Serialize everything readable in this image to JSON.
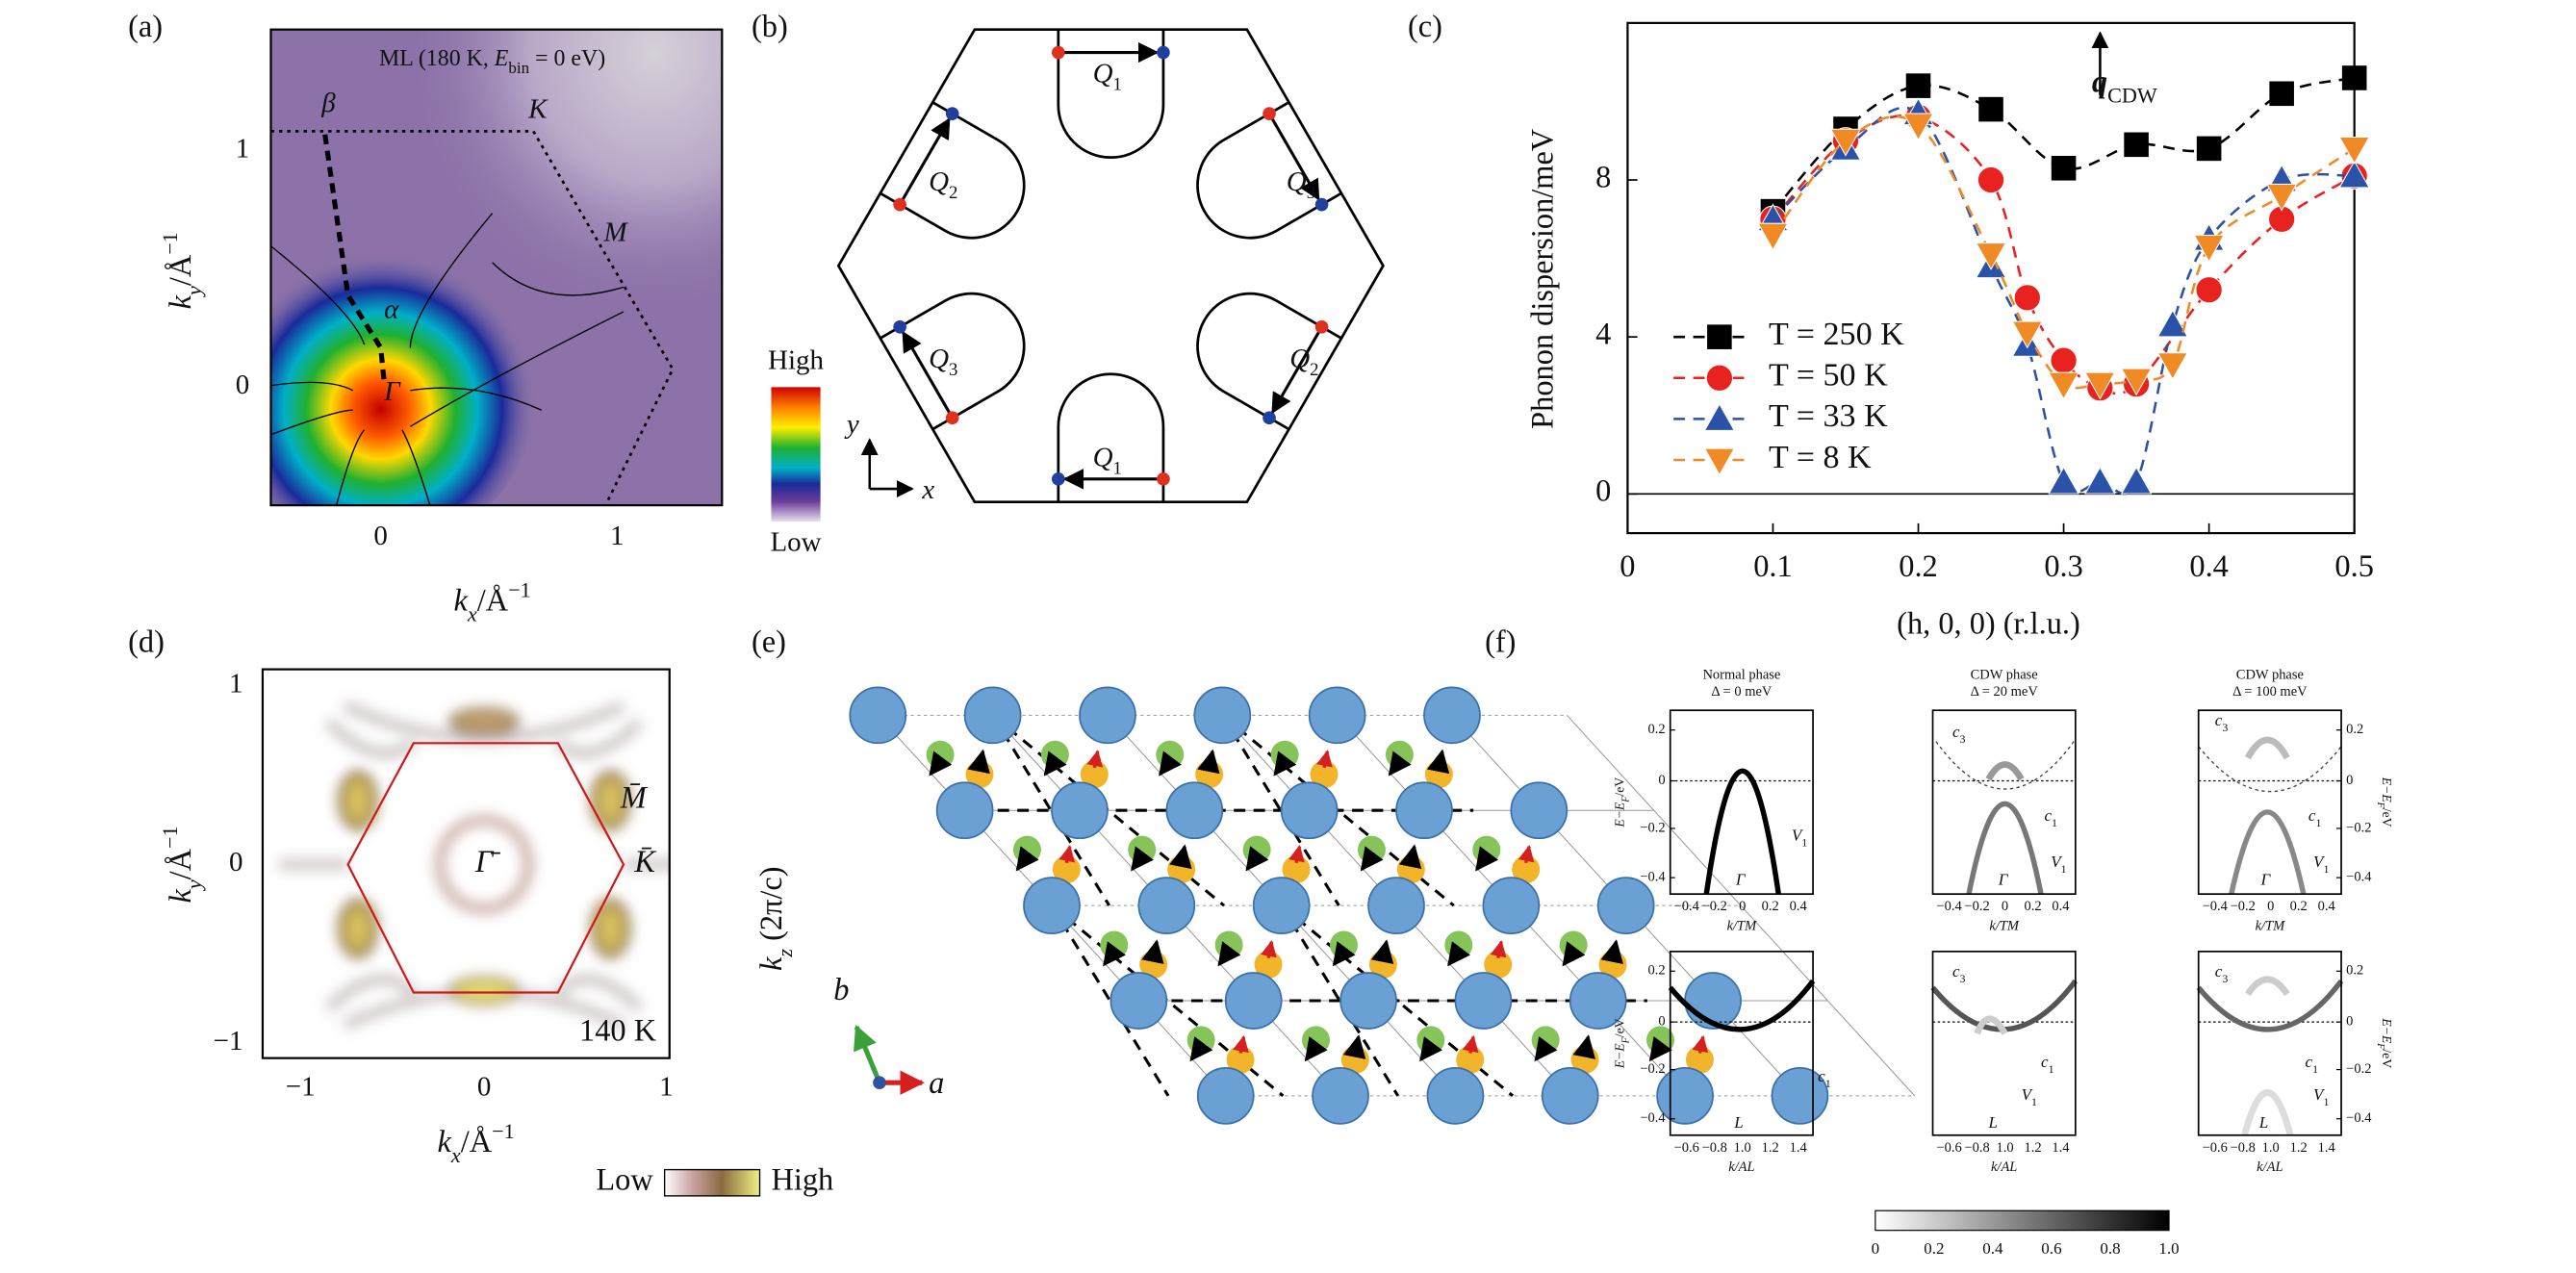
{
  "chart_data": {
    "type": "line",
    "label": "(c)",
    "xlabel": "(h, 0, 0) (r.l.u.)",
    "ylabel": "Phonon dispersion/meV",
    "annotation": [
      "q",
      "CDW"
    ],
    "xlim": [
      0,
      0.5
    ],
    "xticks": [
      0,
      0.1,
      0.2,
      0.3,
      0.4,
      0.5
    ],
    "ylim": [
      -1,
      12
    ],
    "yticks": [
      0,
      4,
      8
    ],
    "zero_line": true,
    "legend_position": "lower left",
    "series": [
      {
        "name": "T = 250 K",
        "color": "#000000",
        "marker": "square",
        "x": [
          0.1,
          0.15,
          0.2,
          0.25,
          0.3,
          0.35,
          0.4,
          0.45,
          0.5
        ],
        "values": [
          7.2,
          9.3,
          10.4,
          9.8,
          8.3,
          8.9,
          8.8,
          10.2,
          10.6
        ]
      },
      {
        "name": "T = 50 K",
        "color": "#e8221e",
        "marker": "circle",
        "x": [
          0.1,
          0.15,
          0.2,
          0.25,
          0.275,
          0.3,
          0.325,
          0.35,
          0.4,
          0.45,
          0.5
        ],
        "values": [
          7.0,
          9.0,
          9.6,
          8.0,
          5.0,
          3.4,
          2.7,
          2.8,
          5.2,
          7.0,
          8.1
        ]
      },
      {
        "name": "T = 33 K",
        "color": "#2a52a8",
        "marker": "triangle-up",
        "x": [
          0.1,
          0.15,
          0.2,
          0.25,
          0.275,
          0.3,
          0.325,
          0.35,
          0.375,
          0.4,
          0.45,
          0.5
        ],
        "values": [
          7.0,
          8.8,
          9.7,
          5.8,
          3.8,
          0.3,
          0.3,
          0.3,
          4.3,
          6.5,
          8.0,
          8.1
        ]
      },
      {
        "name": "T = 8 K",
        "color": "#f08a24",
        "marker": "triangle-down",
        "x": [
          0.1,
          0.15,
          0.2,
          0.25,
          0.275,
          0.3,
          0.325,
          0.35,
          0.375,
          0.4,
          0.45,
          0.5
        ],
        "values": [
          6.6,
          9.0,
          9.4,
          6.1,
          4.1,
          2.8,
          2.8,
          2.9,
          3.3,
          6.3,
          7.6,
          8.8
        ]
      }
    ]
  },
  "panels": {
    "a": {
      "label": "(a)",
      "title": [
        "ML (180 K, ",
        "E",
        "bin",
        " = 0 eV)"
      ],
      "points": [
        "β",
        "K",
        "M",
        "α",
        "Γ"
      ],
      "yticks": [
        "1",
        "0"
      ],
      "xticks": [
        "0",
        "1"
      ],
      "ylabel": [
        "k",
        "y",
        "/Å",
        "−1"
      ],
      "xlabel": [
        "k",
        "x",
        "/Å",
        "−1"
      ],
      "colorbar": [
        "High",
        "Low"
      ]
    },
    "b": {
      "label": "(b)",
      "q": [
        [
          "Q",
          "1"
        ],
        [
          "Q",
          "3"
        ],
        [
          "Q",
          "2"
        ],
        [
          "Q",
          "1"
        ],
        [
          "Q",
          "3"
        ],
        [
          "Q",
          "2"
        ]
      ],
      "axes": [
        "x",
        "y"
      ]
    },
    "d": {
      "label": "(d)",
      "yticks": [
        "1",
        "0",
        "−1"
      ],
      "xticks": [
        "−1",
        "0",
        "1"
      ],
      "ylabel": [
        "k",
        "y",
        "/Å",
        "−1"
      ],
      "xlabel": [
        "k",
        "x",
        "/Å",
        "−1"
      ],
      "points": [
        "Γ̄",
        "M̄",
        "K̄"
      ],
      "temperature": "140 K",
      "colorbar": [
        "Low",
        "High"
      ]
    },
    "e": {
      "label": "(e)",
      "ylabel": [
        "k",
        "z",
        " (2π/c)"
      ],
      "axes": [
        "b",
        "a"
      ]
    },
    "f": {
      "label": "(f)",
      "plots": [
        {
          "title": [
            "Normal phase",
            "Δ = 0 meV"
          ],
          "labels": [
            [
              "Γ"
            ],
            [
              "V",
              "1"
            ]
          ]
        },
        {
          "title": [
            "CDW phase",
            "Δ = 20 meV"
          ],
          "labels": [
            [
              "c",
              "3"
            ],
            [
              "c",
              "1"
            ],
            [
              "Γ"
            ],
            [
              "V",
              "1"
            ]
          ]
        },
        {
          "title": [
            "CDW phase",
            "Δ = 100 meV"
          ],
          "labels": [
            [
              "c",
              "3"
            ],
            [
              "c",
              "1"
            ],
            [
              "Γ"
            ],
            [
              "V",
              "1"
            ]
          ]
        },
        {
          "labels": [
            [
              "c",
              "1"
            ],
            [
              "L"
            ]
          ]
        },
        {
          "labels": [
            [
              "c",
              "3"
            ],
            [
              "c",
              "1"
            ],
            [
              "V",
              "1"
            ],
            [
              "L"
            ]
          ]
        },
        {
          "labels": [
            [
              "c",
              "3"
            ],
            [
              "c",
              "1"
            ],
            [
              "V",
              "1"
            ],
            [
              "L"
            ]
          ]
        }
      ],
      "yticks": [
        "0.2",
        "0",
        "−0.2",
        "−0.4"
      ],
      "top_xticks": [
        "−0.4",
        "−0.2",
        "0",
        "0.2",
        "0.4"
      ],
      "bottom_xticks": [
        "−0.6",
        "−0.8",
        "1.0",
        "1.2",
        "1.4"
      ],
      "top_xlabel": "k/TM",
      "bottom_xlabel": "k/AL",
      "ylabel": [
        "E−E",
        "F",
        "/eV"
      ],
      "colorbar_ticks": [
        "0",
        "0.2",
        "0.4",
        "0.6",
        "0.8",
        "1.0"
      ]
    }
  }
}
